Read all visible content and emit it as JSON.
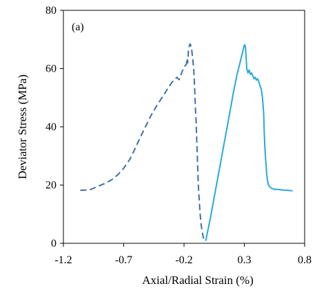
{
  "chart_data": {
    "type": "line",
    "panel_label": "(a)",
    "xlabel": "Axial/Radial Strain (%)",
    "ylabel": "Deviator Stress (MPa)",
    "xlim": [
      -1.2,
      0.8
    ],
    "ylim": [
      0,
      80
    ],
    "x_ticks": [
      -1.2,
      -0.7,
      -0.2,
      0.3,
      0.8
    ],
    "x_tick_labels": [
      "-1.2",
      "-0.7",
      "-0.2",
      "0.3",
      "0.8"
    ],
    "y_ticks": [
      0,
      20,
      40,
      60,
      80
    ],
    "y_tick_labels": [
      "0",
      "20",
      "40",
      "60",
      "80"
    ],
    "grid": false,
    "series": [
      {
        "style": "dashed",
        "color": "#3f6fa6",
        "x": [
          -1.06,
          -0.98,
          -0.93,
          -0.86,
          -0.8,
          -0.75,
          -0.7,
          -0.65,
          -0.6,
          -0.57,
          -0.52,
          -0.47,
          -0.43,
          -0.38,
          -0.34,
          -0.3,
          -0.26,
          -0.24,
          -0.22,
          -0.2,
          -0.18,
          -0.175,
          -0.17,
          -0.165,
          -0.16,
          -0.15,
          -0.14,
          -0.135,
          -0.13,
          -0.12,
          -0.115,
          -0.11,
          -0.105,
          -0.1,
          -0.09,
          -0.085,
          -0.08,
          -0.07,
          -0.06,
          -0.05,
          -0.04,
          -0.03,
          -0.02
        ],
        "y": [
          18.2,
          18.4,
          19.3,
          20.5,
          21.8,
          23.5,
          25.8,
          28.8,
          33.0,
          35.8,
          40.0,
          44.2,
          47.0,
          50.2,
          52.8,
          55.3,
          57.0,
          56.2,
          58.5,
          60.5,
          61.5,
          63.5,
          62.0,
          65.2,
          67.2,
          68.5,
          67.5,
          66.0,
          64.0,
          60.0,
          56.0,
          51.0,
          46.0,
          42.0,
          30.0,
          24.0,
          19.0,
          12.0,
          7.0,
          4.0,
          2.0,
          1.0,
          0.8
        ]
      },
      {
        "style": "solid",
        "color": "#27a8dc",
        "x": [
          -0.02,
          0.02,
          0.06,
          0.1,
          0.14,
          0.18,
          0.21,
          0.24,
          0.27,
          0.29,
          0.3,
          0.305,
          0.31,
          0.315,
          0.32,
          0.33,
          0.34,
          0.35,
          0.36,
          0.37,
          0.38,
          0.39,
          0.4,
          0.41,
          0.42,
          0.43,
          0.44,
          0.45,
          0.46,
          0.465,
          0.47,
          0.475,
          0.48,
          0.485,
          0.49,
          0.5,
          0.52,
          0.55,
          0.58,
          0.62,
          0.66,
          0.7
        ],
        "y": [
          0.8,
          9.0,
          18.0,
          27.0,
          36.0,
          45.0,
          52.0,
          58.0,
          63.0,
          66.5,
          68.0,
          68.2,
          67.0,
          64.0,
          60.0,
          58.5,
          59.5,
          58.0,
          58.5,
          57.5,
          56.5,
          57.0,
          56.0,
          56.5,
          55.5,
          54.0,
          53.0,
          50.0,
          45.0,
          38.0,
          33.0,
          30.0,
          27.0,
          24.0,
          22.0,
          20.0,
          19.0,
          18.5,
          18.5,
          18.3,
          18.2,
          18.0
        ]
      }
    ]
  }
}
